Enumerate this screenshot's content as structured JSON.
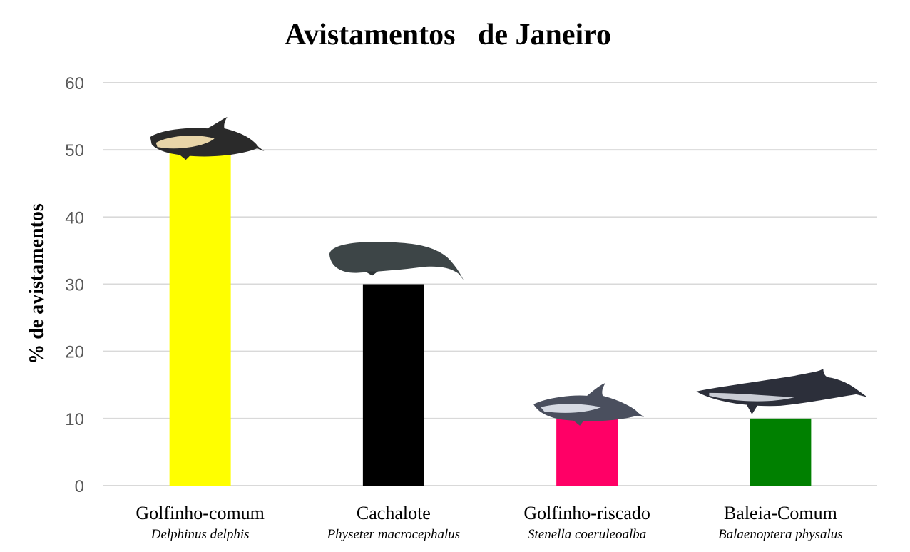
{
  "chart_data": {
    "type": "bar",
    "title": "Avistamentos   de Janeiro",
    "ylabel": "% de avistamentos",
    "xlabel": "",
    "ylim": [
      0,
      60
    ],
    "yticks": [
      0,
      10,
      20,
      30,
      40,
      50,
      60
    ],
    "grid": true,
    "categories": [
      "Golfinho-comum",
      "Cachalote",
      "Golfinho-riscado",
      "Baleia-Comum"
    ],
    "scientific_names": [
      "Delphinus delphis",
      "Physeter macrocephalus",
      "Stenella coeruleoalba",
      "Balaenoptera physalus"
    ],
    "values": [
      50,
      30,
      10,
      10
    ],
    "colors": [
      "#ffff00",
      "#000000",
      "#ff0066",
      "#008000"
    ],
    "icons": [
      "common-dolphin-icon",
      "sperm-whale-icon",
      "striped-dolphin-icon",
      "fin-whale-icon"
    ]
  }
}
